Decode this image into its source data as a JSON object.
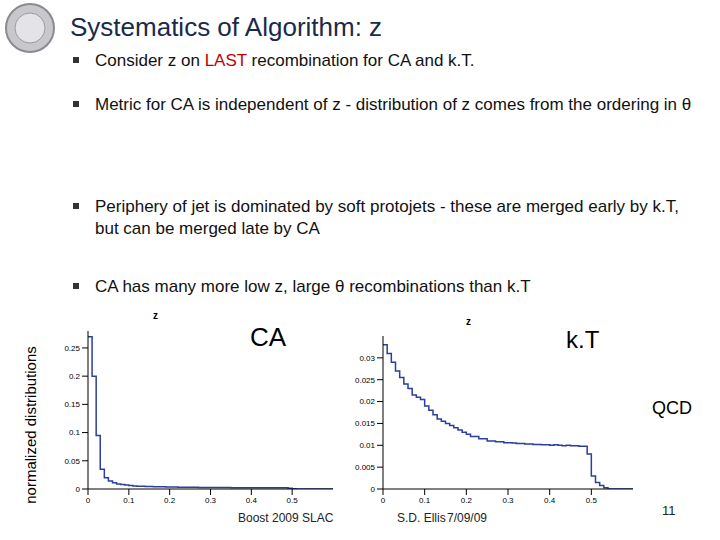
{
  "slide": {
    "title": "Systematics of Algorithm: z",
    "bullets": [
      [
        {
          "text": "Consider z on "
        },
        {
          "text": "LAST",
          "color": "#c00000"
        },
        {
          "text": " recombination for CA and k.T."
        }
      ],
      [
        {
          "text": "Metric for CA is independent of z - distribution of z comes from the ordering in θ"
        }
      ],
      [
        {
          "text": "Periphery of jet is dominated by soft protojets - these are merged early by k.T, but can be merged late by CA"
        }
      ],
      [
        {
          "text": "CA has many more low z, large θ recombinations than k.T"
        }
      ]
    ],
    "y_label": "normalized distributions",
    "footer": [
      "Boost 2009 SLAC",
      "S.D. Ellis",
      "7/09/09",
      "11"
    ]
  },
  "chart_data": [
    {
      "type": "histogram",
      "title": "z",
      "annotations": [
        "CA"
      ],
      "color": "#2a3f9f",
      "bins": [
        0,
        0.01,
        0.02,
        0.03,
        0.04,
        0.05,
        0.06,
        0.07,
        0.08,
        0.09,
        0.1,
        0.11,
        0.12,
        0.13,
        0.14,
        0.15,
        0.16,
        0.17,
        0.18,
        0.19,
        0.2,
        0.21,
        0.22,
        0.23,
        0.24,
        0.25,
        0.26,
        0.27,
        0.28,
        0.29,
        0.3,
        0.31,
        0.32,
        0.33,
        0.34,
        0.35,
        0.36,
        0.37,
        0.38,
        0.39,
        0.4,
        0.41,
        0.42,
        0.43,
        0.44,
        0.45,
        0.46,
        0.47,
        0.48,
        0.49,
        0.5,
        0.51,
        0.52,
        0.53,
        0.54,
        0.55,
        0.56,
        0.57,
        0.58,
        0.59,
        0.6
      ],
      "counts": [
        0.27,
        0.2,
        0.095,
        0.035,
        0.02,
        0.014,
        0.011,
        0.009,
        0.008,
        0.007,
        0.006,
        0.0055,
        0.005,
        0.005,
        0.0045,
        0.0045,
        0.004,
        0.004,
        0.004,
        0.0035,
        0.0035,
        0.0035,
        0.003,
        0.003,
        0.003,
        0.003,
        0.003,
        0.0028,
        0.0028,
        0.0028,
        0.0026,
        0.0026,
        0.0025,
        0.0025,
        0.0025,
        0.0024,
        0.0024,
        0.0023,
        0.0023,
        0.0023,
        0.0022,
        0.0022,
        0.0022,
        0.0021,
        0.0021,
        0.0021,
        0.002,
        0.002,
        0.002,
        0.0015,
        0.0005,
        0.0002,
        0,
        0,
        0,
        0,
        0,
        0,
        0,
        0
      ],
      "xlim": [
        0,
        0.6
      ],
      "xticks": [
        0,
        0.1,
        0.2,
        0.3,
        0.4,
        0.5
      ],
      "ylim": [
        0,
        0.28
      ],
      "yticks": [
        0,
        0.05,
        0.1,
        0.15,
        0.2,
        0.25
      ]
    },
    {
      "type": "histogram",
      "title": "z",
      "annotations": [
        "k.T",
        "QCD"
      ],
      "color": "#2a3f9f",
      "bins": [
        0,
        0.01,
        0.02,
        0.03,
        0.04,
        0.05,
        0.06,
        0.07,
        0.08,
        0.09,
        0.1,
        0.11,
        0.12,
        0.13,
        0.14,
        0.15,
        0.16,
        0.17,
        0.18,
        0.19,
        0.2,
        0.21,
        0.22,
        0.23,
        0.24,
        0.25,
        0.26,
        0.27,
        0.28,
        0.29,
        0.3,
        0.31,
        0.32,
        0.33,
        0.34,
        0.35,
        0.36,
        0.37,
        0.38,
        0.39,
        0.4,
        0.41,
        0.42,
        0.43,
        0.44,
        0.45,
        0.46,
        0.47,
        0.48,
        0.49,
        0.5,
        0.51,
        0.52,
        0.53,
        0.54,
        0.55,
        0.56,
        0.57,
        0.58,
        0.59,
        0.6
      ],
      "counts": [
        0.033,
        0.031,
        0.029,
        0.027,
        0.0255,
        0.024,
        0.023,
        0.0215,
        0.021,
        0.0205,
        0.019,
        0.018,
        0.017,
        0.016,
        0.0155,
        0.015,
        0.0145,
        0.014,
        0.0135,
        0.013,
        0.0125,
        0.012,
        0.012,
        0.0115,
        0.0115,
        0.011,
        0.011,
        0.0108,
        0.0108,
        0.0106,
        0.0106,
        0.0105,
        0.0104,
        0.0104,
        0.0103,
        0.0103,
        0.0102,
        0.0102,
        0.0101,
        0.0101,
        0.01,
        0.0101,
        0.01,
        0.0099,
        0.01,
        0.0099,
        0.0099,
        0.0098,
        0.0098,
        0.008,
        0.003,
        0.0015,
        0.0008,
        0.0003,
        0,
        0,
        0,
        0,
        0,
        0
      ],
      "xlim": [
        0,
        0.6
      ],
      "xticks": [
        0,
        0.1,
        0.2,
        0.3,
        0.4,
        0.5
      ],
      "ylim": [
        0,
        0.035
      ],
      "yticks": [
        0,
        0.005,
        0.01,
        0.015,
        0.02,
        0.025,
        0.03
      ]
    }
  ]
}
